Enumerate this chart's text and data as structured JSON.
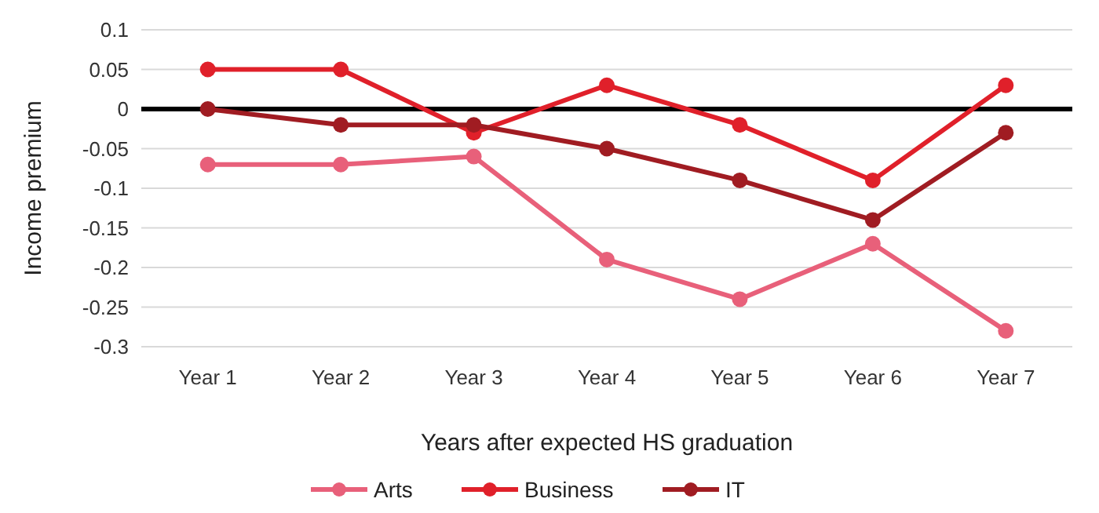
{
  "chart_data": {
    "type": "line",
    "xlabel": "Years after expected HS graduation",
    "ylabel": "Income premium",
    "categories": [
      "Year 1",
      "Year 2",
      "Year 3",
      "Year 4",
      "Year 5",
      "Year 6",
      "Year 7"
    ],
    "series": [
      {
        "name": "Arts",
        "color": "#e8607a",
        "values": [
          -0.07,
          -0.07,
          -0.06,
          -0.19,
          -0.24,
          -0.17,
          -0.28
        ]
      },
      {
        "name": "Business",
        "color": "#e0202a",
        "values": [
          0.05,
          0.05,
          -0.03,
          0.03,
          -0.02,
          -0.09,
          0.03
        ]
      },
      {
        "name": "IT",
        "color": "#a01c22",
        "values": [
          0,
          -0.02,
          -0.02,
          -0.05,
          -0.09,
          -0.14,
          -0.03
        ]
      }
    ],
    "ylim": [
      -0.3,
      0.1
    ],
    "yticks": [
      -0.3,
      -0.25,
      -0.2,
      -0.15,
      -0.1,
      -0.05,
      0,
      0.05,
      0.1
    ],
    "grid": "y",
    "legend": "bottom",
    "marker": "circle",
    "line_style": "solid",
    "ref_lines": [
      {
        "axis": "y",
        "value": 0,
        "color": "#000000"
      }
    ]
  }
}
